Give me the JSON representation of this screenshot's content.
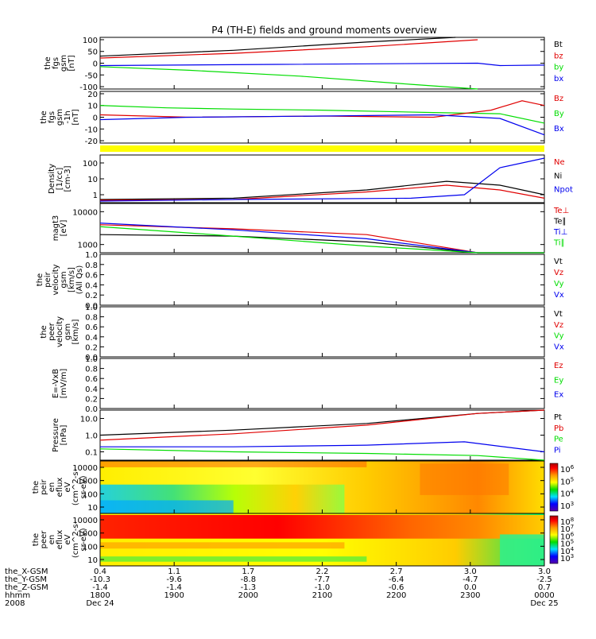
{
  "title": "P4 (TH-E) fields and ground moments overview",
  "colors": {
    "black": "#000000",
    "red": "#e00000",
    "green": "#00dd00",
    "blue": "#0000ee",
    "yellow": "#ffff00"
  },
  "chart_data": [
    {
      "type": "line",
      "id": "fgs_gsm",
      "ylabel": [
        "the",
        "fgs",
        "gsm",
        "[nT]"
      ],
      "yticks": [
        "100",
        "50",
        "0",
        "-50",
        "-100"
      ],
      "ylim": [
        -100,
        100
      ],
      "legend": [
        {
          "name": "Bt",
          "color": "black"
        },
        {
          "name": "bz",
          "color": "red"
        },
        {
          "name": "by",
          "color": "green"
        },
        {
          "name": "bx",
          "color": "blue"
        }
      ],
      "series": [
        {
          "name": "Bt",
          "color": "black",
          "x": [
            0,
            0.3,
            0.6,
            0.8
          ],
          "y": [
            30,
            55,
            90,
            110
          ]
        },
        {
          "name": "bz",
          "color": "red",
          "x": [
            0,
            0.3,
            0.6,
            0.85
          ],
          "y": [
            22,
            42,
            70,
            100
          ]
        },
        {
          "name": "by",
          "color": "green",
          "x": [
            0,
            0.2,
            0.45,
            0.7,
            0.85
          ],
          "y": [
            -15,
            -30,
            -55,
            -90,
            -110
          ]
        },
        {
          "name": "bx",
          "color": "blue",
          "x": [
            0,
            0.4,
            0.85,
            0.9,
            1
          ],
          "y": [
            -10,
            -5,
            0,
            -10,
            -8
          ]
        }
      ]
    },
    {
      "type": "line",
      "id": "fgs_dsl",
      "ylabel": [
        "the",
        "fgs",
        "gsm",
        "-1h",
        "[nT]"
      ],
      "yticks": [
        "20",
        "10",
        "0",
        "-10",
        "-20"
      ],
      "ylim": [
        -20,
        20
      ],
      "legend": [
        {
          "name": "Bz",
          "color": "red"
        },
        {
          "name": "By",
          "color": "green"
        },
        {
          "name": "Bx",
          "color": "blue"
        }
      ],
      "series": [
        {
          "name": "By",
          "color": "green",
          "x": [
            0,
            0.15,
            0.3,
            0.5,
            0.75,
            0.9,
            1
          ],
          "y": [
            10,
            8,
            7,
            6,
            4,
            3,
            -5
          ]
        },
        {
          "name": "Bz",
          "color": "red",
          "x": [
            0,
            0.2,
            0.5,
            0.75,
            0.88,
            0.95,
            1
          ],
          "y": [
            2,
            0,
            1,
            0,
            6,
            14,
            10
          ]
        },
        {
          "name": "Bx",
          "color": "blue",
          "x": [
            0,
            0.2,
            0.5,
            0.75,
            0.9,
            1
          ],
          "y": [
            -2,
            0,
            1,
            2,
            -1,
            -15
          ]
        }
      ]
    },
    {
      "type": "line",
      "id": "density",
      "ylabel": [
        "Density",
        "[1/cc]",
        "[cm-3]"
      ],
      "yticks": [
        "100",
        "10",
        "1"
      ],
      "log": true,
      "legend": [
        {
          "name": "Ne",
          "color": "red"
        },
        {
          "name": "Ni",
          "color": "black"
        },
        {
          "name": "Npot",
          "color": "blue"
        }
      ],
      "series": [
        {
          "name": "Ni",
          "color": "black",
          "x": [
            0,
            0.3,
            0.6,
            0.78,
            0.9,
            1
          ],
          "y": [
            0.5,
            0.6,
            2,
            7,
            4,
            1
          ]
        },
        {
          "name": "Ne",
          "color": "red",
          "x": [
            0,
            0.3,
            0.6,
            0.78,
            0.9,
            1
          ],
          "y": [
            0.45,
            0.5,
            1.5,
            4,
            2,
            0.6
          ]
        },
        {
          "name": "Npot",
          "color": "blue",
          "x": [
            0,
            0.3,
            0.7,
            0.82,
            0.9,
            1
          ],
          "y": [
            0.4,
            0.5,
            0.6,
            1,
            50,
            200
          ]
        }
      ]
    },
    {
      "type": "line",
      "id": "temperature",
      "ylabel": [
        "magt3",
        "[eV]"
      ],
      "yticks": [
        "10000",
        "1000"
      ],
      "log": true,
      "legend": [
        {
          "name": "Te⊥",
          "color": "red"
        },
        {
          "name": "Te∥",
          "color": "black"
        },
        {
          "name": "Ti⊥",
          "color": "blue"
        },
        {
          "name": "Ti∥",
          "color": "green"
        }
      ],
      "series": [
        {
          "name": "Te∥",
          "color": "black",
          "x": [
            0,
            0.3,
            0.6,
            0.85,
            1
          ],
          "y": [
            2000,
            1800,
            1200,
            250,
            230
          ]
        },
        {
          "name": "Te⊥",
          "color": "red",
          "x": [
            0,
            0.3,
            0.6,
            0.85,
            1
          ],
          "y": [
            4000,
            3000,
            2000,
            500,
            330
          ]
        },
        {
          "name": "Ti⊥",
          "color": "blue",
          "x": [
            0,
            0.3,
            0.6,
            0.85,
            1
          ],
          "y": [
            4500,
            2800,
            1500,
            400,
            300
          ]
        },
        {
          "name": "Ti∥",
          "color": "green",
          "x": [
            0,
            0.3,
            0.6,
            0.85,
            1
          ],
          "y": [
            3500,
            1800,
            900,
            300,
            250
          ]
        }
      ]
    },
    {
      "type": "line",
      "id": "peir_velocity",
      "ylabel": [
        "the",
        "peir",
        "velocity",
        "gsm",
        "[km/s]",
        "(All Qs)"
      ],
      "yticks": [
        "1.0",
        "0.8",
        "0.6",
        "0.4",
        "0.2",
        "0.0"
      ],
      "ylim": [
        0,
        1
      ],
      "legend": [
        {
          "name": "Vt",
          "color": "black"
        },
        {
          "name": "Vz",
          "color": "red"
        },
        {
          "name": "Vy",
          "color": "green"
        },
        {
          "name": "Vx",
          "color": "blue"
        }
      ],
      "series": []
    },
    {
      "type": "line",
      "id": "peer_velocity",
      "ylabel": [
        "the",
        "peer",
        "velocity",
        "gsm",
        "[km/s]"
      ],
      "yticks": [
        "1.0",
        "0.8",
        "0.6",
        "0.4",
        "0.2",
        "0.0"
      ],
      "ylim": [
        0,
        1
      ],
      "legend": [
        {
          "name": "Vt",
          "color": "black"
        },
        {
          "name": "Vz",
          "color": "red"
        },
        {
          "name": "Vy",
          "color": "green"
        },
        {
          "name": "Vx",
          "color": "blue"
        }
      ],
      "series": []
    },
    {
      "type": "line",
      "id": "efield",
      "ylabel": [
        "E=-VxB",
        "[mV/m]"
      ],
      "yticks": [
        "1.0",
        "0.8",
        "0.6",
        "0.4",
        "0.2",
        "0.0"
      ],
      "ylim": [
        0,
        1
      ],
      "legend": [
        {
          "name": "Ez",
          "color": "red"
        },
        {
          "name": "Ey",
          "color": "green"
        },
        {
          "name": "Ex",
          "color": "blue"
        }
      ],
      "series": []
    },
    {
      "type": "line",
      "id": "pressure",
      "ylabel": [
        "Pressure",
        "[nPa]"
      ],
      "yticks": [
        "10.0",
        "1.0",
        "0.1"
      ],
      "log": true,
      "legend": [
        {
          "name": "Pt",
          "color": "black"
        },
        {
          "name": "Pb",
          "color": "red"
        },
        {
          "name": "Pe",
          "color": "green"
        },
        {
          "name": "Pi",
          "color": "blue"
        }
      ],
      "series": [
        {
          "name": "Pt",
          "color": "black",
          "x": [
            0,
            0.3,
            0.6,
            0.85,
            1
          ],
          "y": [
            1,
            2,
            5,
            20,
            40
          ]
        },
        {
          "name": "Pb",
          "color": "red",
          "x": [
            0,
            0.3,
            0.6,
            0.85,
            1
          ],
          "y": [
            0.5,
            1.2,
            4,
            20,
            40
          ]
        },
        {
          "name": "Pi",
          "color": "blue",
          "x": [
            0,
            0.3,
            0.6,
            0.82,
            1
          ],
          "y": [
            0.2,
            0.2,
            0.25,
            0.4,
            0.1
          ]
        },
        {
          "name": "Pe",
          "color": "green",
          "x": [
            0,
            0.3,
            0.6,
            0.85,
            1
          ],
          "y": [
            0.15,
            0.1,
            0.08,
            0.06,
            0.03
          ]
        }
      ]
    },
    {
      "type": "heatmap",
      "id": "peir_en_eflux",
      "ylabel": [
        "the",
        "peir",
        "en",
        "eflux",
        "eV",
        "(cm^2-s-",
        "sr-eV)"
      ],
      "yticks": [
        "10000",
        "1000",
        "100",
        "10"
      ],
      "colorbar_ticks": [
        "10^6",
        "10^5",
        "10^4",
        "10^3"
      ]
    },
    {
      "type": "heatmap",
      "id": "peer_en_eflux",
      "ylabel": [
        "the",
        "peer",
        "en",
        "eflux",
        "eV",
        "(cm^2-s-",
        "sr-eV)"
      ],
      "yticks": [
        "10000",
        "1000",
        "100",
        "10"
      ],
      "colorbar_ticks": [
        "10^8",
        "10^7",
        "10^6",
        "10^5",
        "10^4",
        "10^3"
      ]
    }
  ],
  "xaxis": {
    "rows": [
      {
        "label": "the_X-GSM",
        "values": [
          "0.4",
          "1.1",
          "1.7",
          "2.2",
          "2.7",
          "3.0",
          "3.0"
        ]
      },
      {
        "label": "the_Y-GSM",
        "values": [
          "-10.3",
          "-9.6",
          "-8.8",
          "-7.7",
          "-6.4",
          "-4.7",
          "-2.5"
        ]
      },
      {
        "label": "the_Z-GSM",
        "values": [
          "-1.4",
          "-1.4",
          "-1.3",
          "-1.0",
          "-0.6",
          "0.0",
          "0.7"
        ]
      },
      {
        "label": "hhmm",
        "values": [
          "1800",
          "1900",
          "2000",
          "2100",
          "2200",
          "2300",
          "0000"
        ]
      },
      {
        "label": "2008",
        "values": [
          "Dec 24",
          "",
          "",
          "",
          "",
          "",
          "Dec 25"
        ]
      }
    ]
  }
}
